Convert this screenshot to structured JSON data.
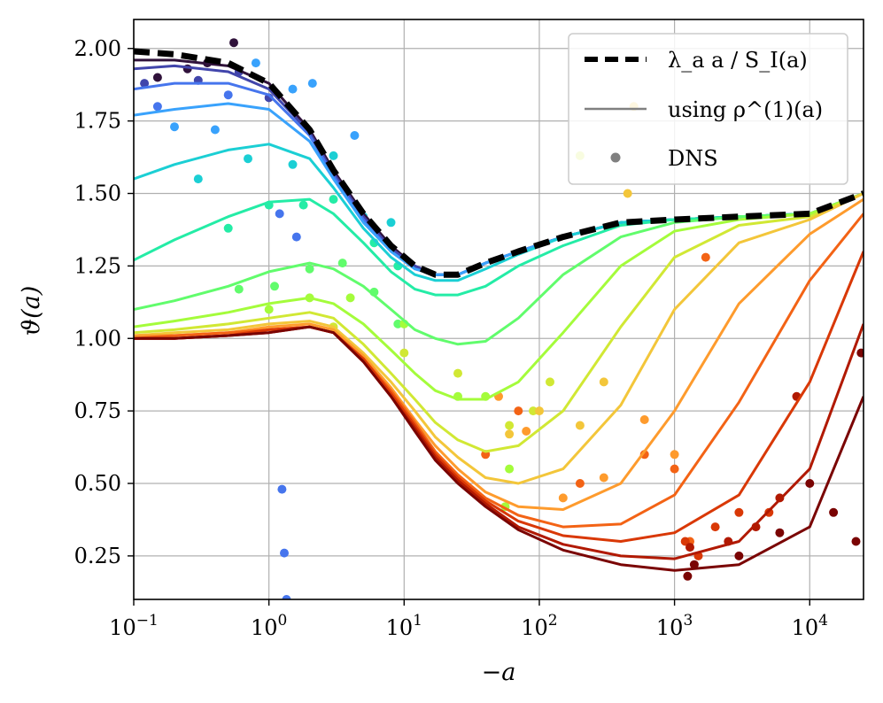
{
  "chart_data": {
    "type": "line",
    "title": "",
    "xlabel": "−a",
    "ylabel": "ϑ(a)",
    "xscale": "log",
    "xlim": [
      0.1,
      25000
    ],
    "ylim": [
      0.1,
      2.1
    ],
    "grid": true,
    "x_ticks": [
      {
        "value": 0.1,
        "base": "10",
        "exp": "−1"
      },
      {
        "value": 1,
        "base": "10",
        "exp": "0"
      },
      {
        "value": 10,
        "base": "10",
        "exp": "1"
      },
      {
        "value": 100,
        "base": "10",
        "exp": "2"
      },
      {
        "value": 1000,
        "base": "10",
        "exp": "3"
      },
      {
        "value": 10000,
        "base": "10",
        "exp": "4"
      }
    ],
    "y_ticks": [
      {
        "value": 0.25,
        "label": "0.25"
      },
      {
        "value": 0.5,
        "label": "0.50"
      },
      {
        "value": 0.75,
        "label": "0.75"
      },
      {
        "value": 1.0,
        "label": "1.00"
      },
      {
        "value": 1.25,
        "label": "1.25"
      },
      {
        "value": 1.5,
        "label": "1.50"
      },
      {
        "value": 1.75,
        "label": "1.75"
      },
      {
        "value": 2.0,
        "label": "2.00"
      }
    ],
    "legend": {
      "placement": "top-right",
      "entries": [
        {
          "label": "λ_a a / S_I(a)",
          "style": "dashed",
          "color": "#000000"
        },
        {
          "label": "using ρ^(1)(a)",
          "style": "solid",
          "color": "#808080"
        },
        {
          "label": "DNS",
          "style": "marker",
          "color": "#808080"
        }
      ]
    },
    "reference_curve": {
      "name": "λ_a a / S_I(a)",
      "color": "#000000",
      "x": [
        0.1,
        0.2,
        0.5,
        1,
        2,
        3,
        5,
        8,
        12,
        17,
        25,
        40,
        70,
        150,
        400,
        1000,
        3000,
        10000,
        25000
      ],
      "y": [
        1.99,
        1.98,
        1.95,
        1.88,
        1.72,
        1.58,
        1.43,
        1.32,
        1.25,
        1.22,
        1.22,
        1.26,
        1.3,
        1.35,
        1.4,
        1.41,
        1.42,
        1.43,
        1.5
      ]
    },
    "series": [
      {
        "name": "curve-1",
        "color": "#30123b",
        "x": [
          0.1,
          0.2,
          0.5,
          1,
          2,
          3,
          5,
          8,
          12,
          17,
          25,
          40,
          70,
          150,
          400,
          1000,
          3000,
          10000,
          25000
        ],
        "y": [
          1.96,
          1.96,
          1.94,
          1.88,
          1.72,
          1.58,
          1.43,
          1.32,
          1.25,
          1.22,
          1.22,
          1.26,
          1.3,
          1.35,
          1.4,
          1.41,
          1.42,
          1.43,
          1.5
        ]
      },
      {
        "name": "curve-2",
        "color": "#4145ab",
        "x": [
          0.1,
          0.2,
          0.5,
          1,
          2,
          3,
          5,
          8,
          12,
          17,
          25,
          40,
          70,
          150,
          400,
          1000,
          3000,
          10000,
          25000
        ],
        "y": [
          1.93,
          1.94,
          1.92,
          1.86,
          1.71,
          1.57,
          1.42,
          1.31,
          1.25,
          1.22,
          1.22,
          1.26,
          1.3,
          1.35,
          1.4,
          1.41,
          1.42,
          1.43,
          1.5
        ]
      },
      {
        "name": "curve-3",
        "color": "#4675ed",
        "x": [
          0.1,
          0.2,
          0.5,
          1,
          2,
          3,
          5,
          8,
          12,
          17,
          25,
          40,
          70,
          150,
          400,
          1000,
          3000,
          10000,
          25000
        ],
        "y": [
          1.86,
          1.88,
          1.88,
          1.84,
          1.7,
          1.56,
          1.41,
          1.3,
          1.24,
          1.22,
          1.22,
          1.26,
          1.3,
          1.35,
          1.4,
          1.41,
          1.42,
          1.43,
          1.5
        ]
      },
      {
        "name": "curve-4",
        "color": "#39a2fc",
        "x": [
          0.1,
          0.2,
          0.5,
          1,
          2,
          3,
          5,
          8,
          12,
          17,
          25,
          40,
          70,
          150,
          400,
          1000,
          3000,
          10000,
          25000
        ],
        "y": [
          1.77,
          1.79,
          1.81,
          1.79,
          1.68,
          1.55,
          1.4,
          1.3,
          1.24,
          1.22,
          1.22,
          1.26,
          1.3,
          1.35,
          1.4,
          1.41,
          1.42,
          1.43,
          1.5
        ]
      },
      {
        "name": "curve-5",
        "color": "#1bcfd4",
        "x": [
          0.1,
          0.2,
          0.5,
          1,
          2,
          3,
          5,
          8,
          12,
          17,
          25,
          40,
          70,
          150,
          400,
          1000,
          3000,
          10000,
          25000
        ],
        "y": [
          1.55,
          1.6,
          1.65,
          1.67,
          1.62,
          1.52,
          1.38,
          1.28,
          1.22,
          1.2,
          1.2,
          1.24,
          1.29,
          1.35,
          1.4,
          1.41,
          1.42,
          1.43,
          1.5
        ]
      },
      {
        "name": "curve-6",
        "color": "#24eca6",
        "x": [
          0.1,
          0.2,
          0.5,
          1,
          2,
          3,
          5,
          8,
          12,
          17,
          25,
          40,
          70,
          150,
          400,
          1000,
          3000,
          10000,
          25000
        ],
        "y": [
          1.27,
          1.34,
          1.42,
          1.47,
          1.48,
          1.43,
          1.33,
          1.23,
          1.17,
          1.15,
          1.15,
          1.18,
          1.25,
          1.32,
          1.39,
          1.41,
          1.42,
          1.43,
          1.5
        ]
      },
      {
        "name": "curve-7",
        "color": "#61fc6c",
        "x": [
          0.1,
          0.2,
          0.5,
          1,
          2,
          3,
          5,
          8,
          12,
          17,
          25,
          40,
          70,
          150,
          400,
          1000,
          3000,
          10000,
          25000
        ],
        "y": [
          1.1,
          1.13,
          1.18,
          1.23,
          1.26,
          1.24,
          1.18,
          1.1,
          1.03,
          1.0,
          0.98,
          0.99,
          1.07,
          1.22,
          1.35,
          1.4,
          1.42,
          1.43,
          1.5
        ]
      },
      {
        "name": "curve-8",
        "color": "#a4fc3b",
        "x": [
          0.1,
          0.2,
          0.5,
          1,
          2,
          3,
          5,
          8,
          12,
          17,
          25,
          40,
          70,
          150,
          400,
          1000,
          3000,
          10000,
          25000
        ],
        "y": [
          1.04,
          1.06,
          1.09,
          1.12,
          1.14,
          1.12,
          1.05,
          0.96,
          0.88,
          0.82,
          0.79,
          0.79,
          0.85,
          1.02,
          1.25,
          1.37,
          1.41,
          1.43,
          1.5
        ]
      },
      {
        "name": "curve-9",
        "color": "#d1e834",
        "x": [
          0.1,
          0.2,
          0.5,
          1,
          2,
          3,
          5,
          8,
          12,
          17,
          25,
          40,
          70,
          150,
          400,
          1000,
          3000,
          10000,
          25000
        ],
        "y": [
          1.02,
          1.03,
          1.05,
          1.07,
          1.09,
          1.07,
          0.98,
          0.88,
          0.79,
          0.71,
          0.65,
          0.61,
          0.63,
          0.75,
          1.04,
          1.28,
          1.39,
          1.42,
          1.5
        ]
      },
      {
        "name": "curve-10",
        "color": "#f3c63a",
        "x": [
          0.1,
          0.2,
          0.5,
          1,
          2,
          3,
          5,
          8,
          12,
          17,
          25,
          40,
          70,
          150,
          400,
          1000,
          3000,
          10000,
          25000
        ],
        "y": [
          1.01,
          1.02,
          1.03,
          1.05,
          1.06,
          1.04,
          0.95,
          0.85,
          0.75,
          0.66,
          0.59,
          0.52,
          0.5,
          0.55,
          0.77,
          1.1,
          1.33,
          1.41,
          1.5
        ]
      },
      {
        "name": "curve-11",
        "color": "#fe9b2d",
        "x": [
          0.1,
          0.2,
          0.5,
          1,
          2,
          3,
          5,
          8,
          12,
          17,
          25,
          40,
          70,
          150,
          400,
          1000,
          3000,
          10000,
          25000
        ],
        "y": [
          1.01,
          1.01,
          1.02,
          1.04,
          1.05,
          1.03,
          0.94,
          0.83,
          0.72,
          0.63,
          0.55,
          0.47,
          0.42,
          0.41,
          0.5,
          0.75,
          1.12,
          1.36,
          1.48
        ]
      },
      {
        "name": "curve-12",
        "color": "#f36315",
        "x": [
          0.1,
          0.2,
          0.5,
          1,
          2,
          3,
          5,
          8,
          12,
          17,
          25,
          40,
          70,
          150,
          400,
          1000,
          3000,
          10000,
          25000
        ],
        "y": [
          1.0,
          1.01,
          1.02,
          1.03,
          1.04,
          1.02,
          0.93,
          0.82,
          0.71,
          0.61,
          0.53,
          0.45,
          0.39,
          0.35,
          0.36,
          0.46,
          0.78,
          1.2,
          1.43
        ]
      },
      {
        "name": "curve-13",
        "color": "#d93806",
        "x": [
          0.1,
          0.2,
          0.5,
          1,
          2,
          3,
          5,
          8,
          12,
          17,
          25,
          40,
          70,
          150,
          400,
          1000,
          3000,
          10000,
          25000
        ],
        "y": [
          1.0,
          1.0,
          1.01,
          1.03,
          1.04,
          1.02,
          0.93,
          0.81,
          0.7,
          0.6,
          0.52,
          0.44,
          0.37,
          0.32,
          0.3,
          0.33,
          0.46,
          0.85,
          1.3
        ]
      },
      {
        "name": "curve-14",
        "color": "#b11901",
        "x": [
          0.1,
          0.2,
          0.5,
          1,
          2,
          3,
          5,
          8,
          12,
          17,
          25,
          40,
          70,
          150,
          400,
          1000,
          3000,
          10000,
          25000
        ],
        "y": [
          1.0,
          1.0,
          1.01,
          1.02,
          1.04,
          1.02,
          0.92,
          0.8,
          0.69,
          0.59,
          0.51,
          0.43,
          0.35,
          0.29,
          0.25,
          0.24,
          0.3,
          0.55,
          1.05
        ]
      },
      {
        "name": "curve-15",
        "color": "#7a0403",
        "x": [
          0.1,
          0.2,
          0.5,
          1,
          2,
          3,
          5,
          8,
          12,
          17,
          25,
          40,
          70,
          150,
          400,
          1000,
          3000,
          10000,
          25000
        ],
        "y": [
          1.0,
          1.0,
          1.01,
          1.02,
          1.04,
          1.02,
          0.92,
          0.8,
          0.68,
          0.58,
          0.5,
          0.42,
          0.34,
          0.27,
          0.22,
          0.2,
          0.22,
          0.35,
          0.8
        ]
      }
    ],
    "dns_scatter": [
      {
        "color": "#30123b",
        "x": [
          0.15,
          0.25,
          0.35,
          0.55
        ],
        "y": [
          1.9,
          1.93,
          1.95,
          2.02
        ]
      },
      {
        "color": "#4145ab",
        "x": [
          0.12,
          0.3,
          0.6,
          1.0
        ],
        "y": [
          1.88,
          1.89,
          1.92,
          1.83
        ]
      },
      {
        "color": "#4675ed",
        "x": [
          0.15,
          0.5,
          1.2,
          1.25,
          1.3,
          1.35,
          1.6
        ],
        "y": [
          1.8,
          1.84,
          1.43,
          0.48,
          0.26,
          0.1,
          1.35
        ]
      },
      {
        "color": "#39a2fc",
        "x": [
          0.2,
          0.4,
          0.8,
          1.5,
          2.1,
          4.3
        ],
        "y": [
          1.73,
          1.72,
          1.95,
          1.86,
          1.88,
          1.7
        ]
      },
      {
        "color": "#1bcfd4",
        "x": [
          0.3,
          0.7,
          1.5,
          3.0,
          5.0,
          8.0
        ],
        "y": [
          1.55,
          1.62,
          1.6,
          1.63,
          1.42,
          1.4
        ]
      },
      {
        "color": "#24eca6",
        "x": [
          0.5,
          1.0,
          1.8,
          3.0,
          6.0,
          9.0
        ],
        "y": [
          1.38,
          1.46,
          1.46,
          1.48,
          1.33,
          1.25
        ]
      },
      {
        "color": "#61fc6c",
        "x": [
          0.6,
          1.1,
          2.0,
          3.5,
          6.0,
          9.0
        ],
        "y": [
          1.17,
          1.18,
          1.24,
          1.26,
          1.16,
          1.05
        ]
      },
      {
        "color": "#a4fc3b",
        "x": [
          1.0,
          2.0,
          4.0,
          10,
          25,
          40,
          56,
          60
        ],
        "y": [
          1.1,
          1.14,
          1.14,
          1.05,
          0.8,
          0.8,
          0.42,
          0.55
        ]
      },
      {
        "color": "#d1e834",
        "x": [
          3.0,
          10,
          25,
          60,
          90,
          120,
          200
        ],
        "y": [
          1.04,
          0.95,
          0.88,
          0.7,
          0.75,
          0.85,
          1.63
        ]
      },
      {
        "color": "#f3c63a",
        "x": [
          60,
          100,
          200,
          300,
          450,
          500
        ],
        "y": [
          0.67,
          0.75,
          0.7,
          0.85,
          1.5,
          1.8
        ]
      },
      {
        "color": "#fe9b2d",
        "x": [
          50,
          80,
          150,
          300,
          600,
          1000
        ],
        "y": [
          0.8,
          0.68,
          0.45,
          0.52,
          0.72,
          0.6
        ]
      },
      {
        "color": "#f36315",
        "x": [
          40,
          70,
          200,
          600,
          1000,
          1300,
          1700
        ],
        "y": [
          0.6,
          0.75,
          0.5,
          0.6,
          0.55,
          0.3,
          1.28
        ]
      },
      {
        "color": "#d93806",
        "x": [
          1200,
          1500,
          2000,
          3000,
          5000
        ],
        "y": [
          0.3,
          0.25,
          0.35,
          0.4,
          0.4
        ]
      },
      {
        "color": "#b11901",
        "x": [
          1300,
          2500,
          4000,
          6000,
          8000
        ],
        "y": [
          0.28,
          0.3,
          0.35,
          0.45,
          0.8
        ]
      },
      {
        "color": "#7a0403",
        "x": [
          1250,
          1400,
          3000,
          6000,
          10000,
          15000,
          22000,
          24000
        ],
        "y": [
          0.18,
          0.22,
          0.25,
          0.33,
          0.5,
          0.4,
          0.3,
          0.95
        ]
      }
    ]
  }
}
